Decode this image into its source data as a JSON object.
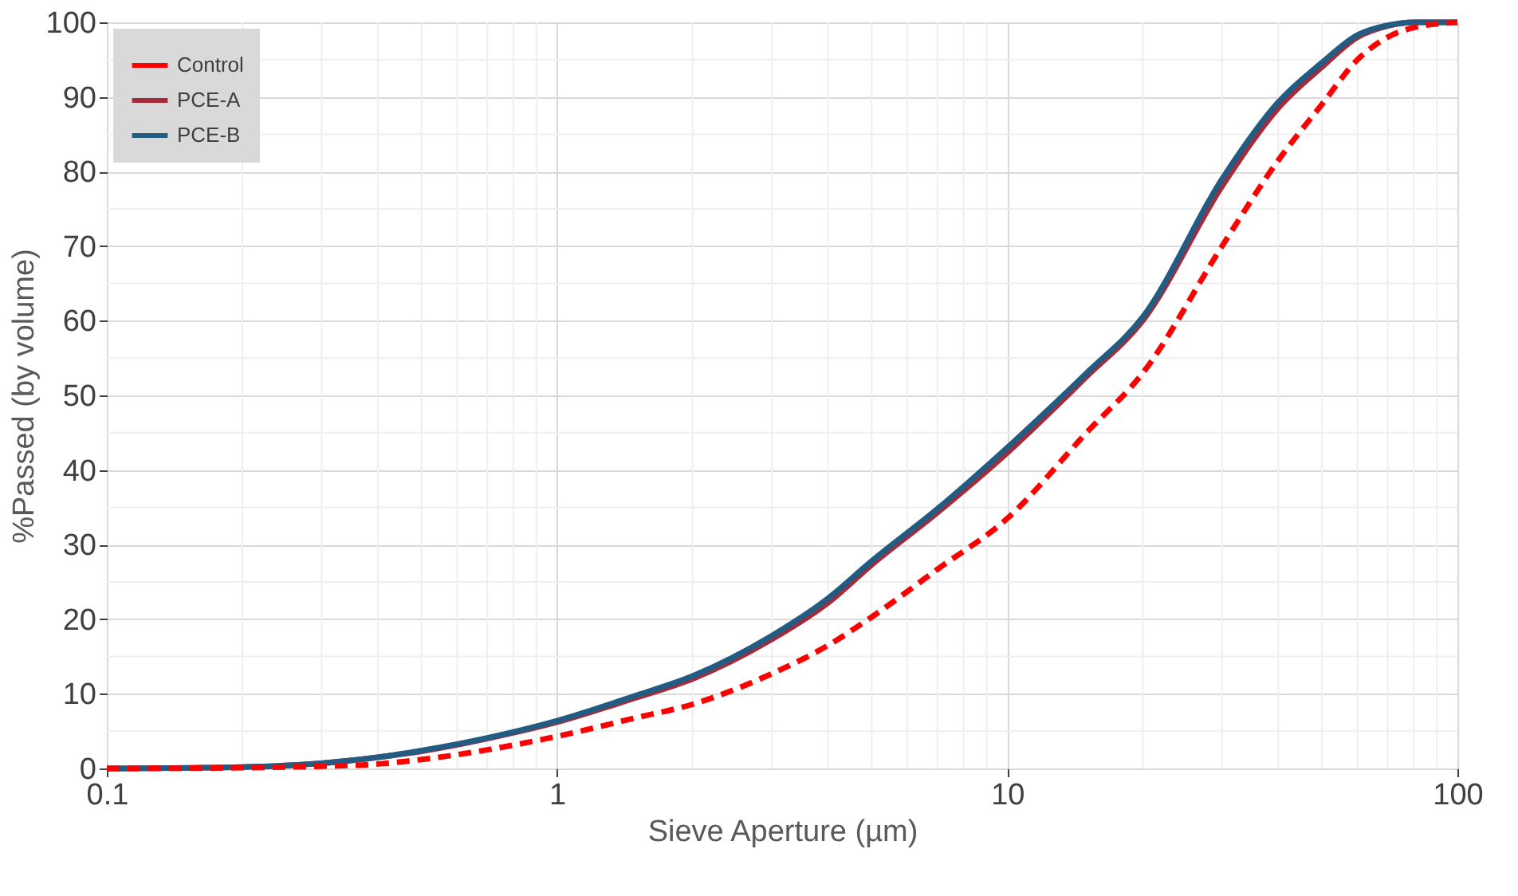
{
  "chart_data": {
    "type": "line",
    "xlabel": "Sieve Aperture (µm)",
    "ylabel": "%Passed (by volume)",
    "x": [
      0.1,
      0.2,
      0.3,
      0.4,
      0.5,
      0.7,
      1,
      1.5,
      2,
      3,
      4,
      5,
      7,
      10,
      15,
      20,
      30,
      40,
      50,
      60,
      70,
      80,
      100
    ],
    "series": [
      {
        "name": "Control",
        "color": "#ff0000",
        "line_style": "dashed",
        "values": [
          0,
          0.1,
          0.3,
          0.6,
          1.2,
          2.5,
          4.3,
          6.8,
          8.6,
          12.7,
          16.5,
          20.3,
          26.7,
          33.5,
          45,
          53,
          70,
          81.5,
          89,
          95,
          98,
          99.3,
          100
        ]
      },
      {
        "name": "PCE-A",
        "color": "#a52a3a",
        "line_style": "solid",
        "values": [
          0,
          0.2,
          0.7,
          1.5,
          2.3,
          4,
          6.2,
          9.5,
          12,
          17.3,
          22.2,
          27.3,
          34.3,
          42.3,
          52.5,
          60,
          78,
          88.5,
          94,
          98,
          99.5,
          100,
          100
        ]
      },
      {
        "name": "PCE-B",
        "color": "#235c82",
        "line_style": "solid",
        "values": [
          0,
          0.2,
          0.7,
          1.5,
          2.4,
          4.1,
          6.4,
          9.8,
          12.4,
          17.8,
          22.8,
          27.8,
          34.8,
          43,
          53,
          60.5,
          79,
          89.3,
          94.6,
          98.3,
          99.6,
          100,
          100
        ]
      }
    ],
    "xlim": [
      0.1,
      100
    ],
    "xticks": [
      0.1,
      1,
      10,
      100
    ],
    "ylim": [
      0,
      100
    ],
    "yticks": [
      0,
      10,
      20,
      30,
      40,
      50,
      60,
      70,
      80,
      90,
      100
    ],
    "log": "x",
    "grid": true,
    "legend": "top left",
    "marker": "none"
  }
}
